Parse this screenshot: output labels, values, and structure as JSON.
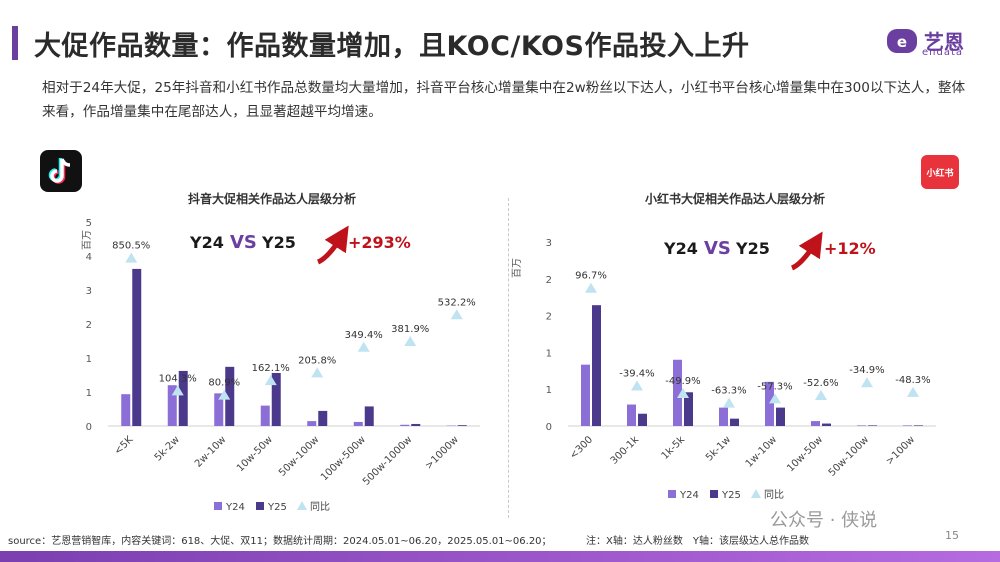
{
  "header": {
    "title": "大促作品数量：作品数量增加，且KOC/KOS作品投入上升",
    "logo_text": "艺恩",
    "logo_sub": "endata"
  },
  "summary": "相对于24年大促，25年抖音和小红书作品总数量均大量增加，抖音平台核心增量集中在2w粉丝以下达人，小红书平台核心增量集中在300以下达人，整体来看，作品增量集中在尾部达人，且显著超越平均增速。",
  "platform_logos": {
    "right": "小红书"
  },
  "footer": {
    "source": "source：艺恩营销智库，内容关键词：618、大促、双11；数据统计周期：2024.05.01~06.20，2025.05.01~06.20；",
    "note": "注：X轴：达人粉丝数　Y轴：该层级达人总作品数",
    "page": "15",
    "wechat": "公众号 · 侠说"
  },
  "colors": {
    "accent": "#6b3fa0",
    "y24": "#8b6fd6",
    "y25": "#4b3a8c",
    "ratio": "#bfe3f0",
    "growth": "#c0121b"
  },
  "chart_data": [
    {
      "type": "bar",
      "title": "抖音大促相关作品达人层级分析",
      "ylabel": "百万",
      "ylim": [
        0,
        5
      ],
      "yticks": [
        "0",
        "1",
        "1",
        "2",
        "3",
        "4",
        "5"
      ],
      "categories": [
        "<5K",
        "5k-2w",
        "2w-10w",
        "10w-50w",
        "50w-100w",
        "100w-500w",
        "500w-1000w",
        ">1000w"
      ],
      "series": [
        {
          "name": "Y24",
          "values": [
            0.78,
            1.0,
            0.8,
            0.5,
            0.12,
            0.1,
            0.03,
            0.01
          ]
        },
        {
          "name": "Y25",
          "values": [
            3.85,
            1.35,
            1.45,
            1.3,
            0.37,
            0.48,
            0.05,
            0.02
          ]
        }
      ],
      "ratio_series": {
        "name": "同比",
        "values": [
          850.5,
          104.3,
          80.9,
          162.1,
          205.8,
          349.4,
          381.9,
          532.2
        ],
        "labels": [
          "850.5%",
          "104.3%",
          "80.9%",
          "162.1%",
          "205.8%",
          "349.4%",
          "381.9%",
          "532.2%"
        ]
      },
      "compare": {
        "left": "Y24",
        "vs": "VS",
        "right": "Y25",
        "growth": "+293%"
      },
      "legend": [
        "Y24",
        "Y25",
        "同比"
      ]
    },
    {
      "type": "bar",
      "title": "小红书大促相关作品达人层级分析",
      "ylabel": "百万",
      "ylim": [
        0,
        3
      ],
      "yticks": [
        "0",
        "1",
        "1",
        "2",
        "2",
        "3"
      ],
      "categories": [
        "<300",
        "300-1k",
        "1k-5k",
        "5k-1w",
        "1w-10w",
        "10w-50w",
        "50w-100w",
        ">100w"
      ],
      "series": [
        {
          "name": "Y24",
          "values": [
            1.0,
            0.35,
            1.08,
            0.3,
            0.72,
            0.08,
            0.01,
            0.01
          ]
        },
        {
          "name": "Y25",
          "values": [
            1.97,
            0.2,
            0.55,
            0.12,
            0.3,
            0.04,
            0.01,
            0.01
          ]
        }
      ],
      "ratio_series": {
        "name": "同比",
        "values": [
          96.7,
          -39.4,
          -49.9,
          -63.3,
          -57.3,
          -52.6,
          -34.9,
          -48.3
        ],
        "labels": [
          "96.7%",
          "-39.4%",
          "-49.9%",
          "-63.3%",
          "-57.3%",
          "-52.6%",
          "-34.9%",
          "-48.3%"
        ]
      },
      "compare": {
        "left": "Y24",
        "vs": "VS",
        "right": "Y25",
        "growth": "+12%"
      },
      "legend": [
        "Y24",
        "Y25",
        "同比"
      ]
    }
  ]
}
